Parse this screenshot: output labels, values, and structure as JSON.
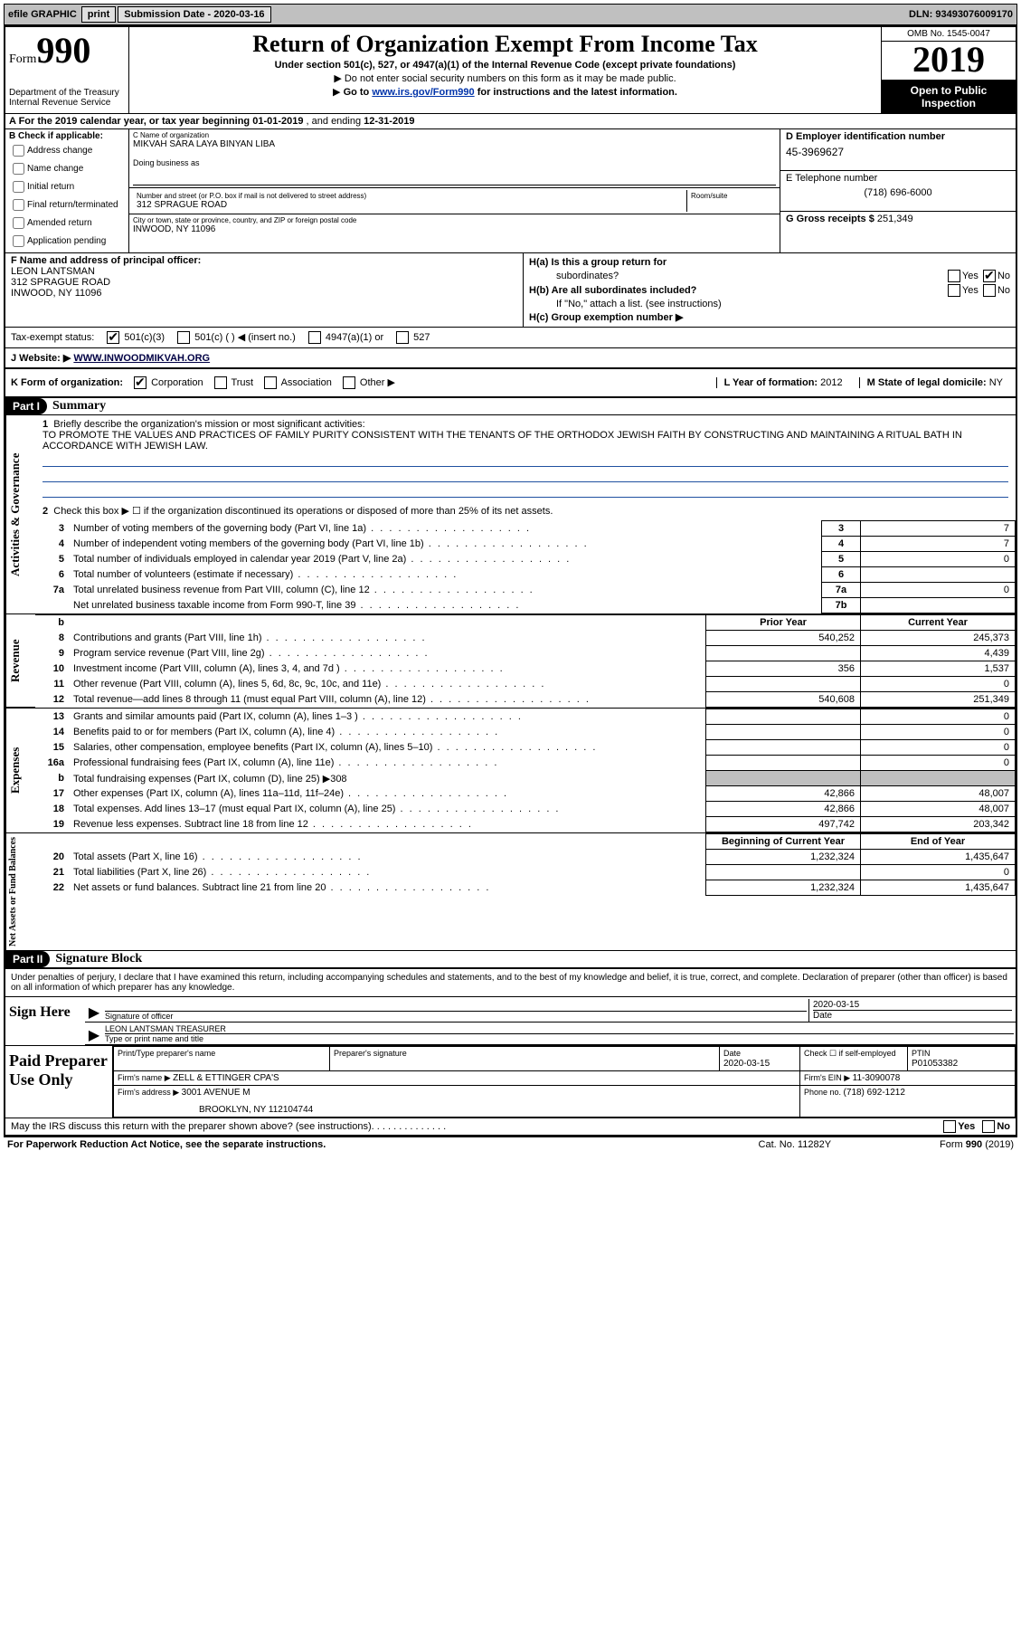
{
  "topbar": {
    "efile": "efile GRAPHIC",
    "print": "print",
    "sub_label": "Submission Date - ",
    "sub_date": "2020-03-16",
    "dln_label": "DLN: ",
    "dln": "93493076009170"
  },
  "header": {
    "form_word": "Form",
    "form_num": "990",
    "dept1": "Department of the Treasury",
    "dept2": "Internal Revenue Service",
    "title": "Return of Organization Exempt From Income Tax",
    "sub1": "Under section 501(c), 527, or 4947(a)(1) of the Internal Revenue Code (except private foundations)",
    "sub2": "Do not enter social security numbers on this form as it may be made public.",
    "sub3_pre": "Go to ",
    "sub3_link": "www.irs.gov/Form990",
    "sub3_post": " for instructions and the latest information.",
    "omb": "OMB No. 1545-0047",
    "year": "2019",
    "open1": "Open to Public",
    "open2": "Inspection"
  },
  "rowA": {
    "text_pre": "A For the 2019 calendar year, or tax year beginning ",
    "begin": "01-01-2019",
    "mid": " , and ending ",
    "end": "12-31-2019"
  },
  "colB": {
    "title": "B Check if applicable:",
    "opts": [
      "Address change",
      "Name change",
      "Initial return",
      "Final return/terminated",
      "Amended return",
      "Application pending"
    ]
  },
  "colC": {
    "name_label": "C Name of organization",
    "name": "MIKVAH SARA LAYA BINYAN LIBA",
    "dba_label": "Doing business as",
    "addr_label": "Number and street (or P.O. box if mail is not delivered to street address)",
    "addr": "312 SPRAGUE ROAD",
    "suite_label": "Room/suite",
    "city_label": "City or town, state or province, country, and ZIP or foreign postal code",
    "city": "INWOOD, NY  11096"
  },
  "colD": {
    "label": "D Employer identification number",
    "ein": "45-3969627"
  },
  "colE": {
    "label": "E Telephone number",
    "phone": "(718) 696-6000"
  },
  "colG": {
    "label": "G Gross receipts $ ",
    "val": "251,349"
  },
  "colF": {
    "label": "F  Name and address of principal officer:",
    "name": "LEON LANTSMAN",
    "addr1": "312 SPRAGUE ROAD",
    "addr2": "INWOOD, NY  11096"
  },
  "colH": {
    "ha1": "H(a)  Is this a group return for",
    "ha2": "subordinates?",
    "hb1": "H(b)  Are all subordinates included?",
    "hb2": "If \"No,\" attach a list. (see instructions)",
    "hc": "H(c)  Group exemption number ▶",
    "yes": "Yes",
    "no": "No"
  },
  "taxStatus": {
    "label": "Tax-exempt status:",
    "o1": "501(c)(3)",
    "o2": "501(c) (  ) ◀ (insert no.)",
    "o3": "4947(a)(1) or",
    "o4": "527"
  },
  "rowJ": {
    "label": "J   Website: ▶ ",
    "url": "WWW.INWOODMIKVAH.ORG"
  },
  "rowK": {
    "k": "K Form of organization:",
    "corp": "Corporation",
    "trust": "Trust",
    "assoc": "Association",
    "other": "Other ▶",
    "l_label": "L Year of formation: ",
    "l_val": "2012",
    "m_label": "M State of legal domicile: ",
    "m_val": "NY"
  },
  "part1": {
    "tag": "Part I",
    "title": "Summary",
    "q1": "Briefly describe the organization's mission or most significant activities:",
    "mission": "TO PROMOTE THE VALUES AND PRACTICES OF FAMILY PURITY CONSISTENT WITH THE TENANTS OF THE ORTHODOX JEWISH FAITH BY CONSTRUCTING AND MAINTAINING A RITUAL BATH IN ACCORDANCE WITH JEWISH LAW.",
    "q2": "Check this box ▶ ☐  if the organization discontinued its operations or disposed of more than 25% of its net assets.",
    "lines_ag": [
      {
        "n": "3",
        "t": "Number of voting members of the governing body (Part VI, line 1a)",
        "box": "3",
        "v": "7"
      },
      {
        "n": "4",
        "t": "Number of independent voting members of the governing body (Part VI, line 1b)",
        "box": "4",
        "v": "7"
      },
      {
        "n": "5",
        "t": "Total number of individuals employed in calendar year 2019 (Part V, line 2a)",
        "box": "5",
        "v": "0"
      },
      {
        "n": "6",
        "t": "Total number of volunteers (estimate if necessary)",
        "box": "6",
        "v": ""
      },
      {
        "n": "7a",
        "t": "Total unrelated business revenue from Part VIII, column (C), line 12",
        "box": "7a",
        "v": "0"
      },
      {
        "n": "",
        "t": "Net unrelated business taxable income from Form 990-T, line 39",
        "box": "7b",
        "v": ""
      }
    ],
    "prior_h": "Prior Year",
    "curr_h": "Current Year",
    "revenue": [
      {
        "n": "8",
        "t": "Contributions and grants (Part VIII, line 1h)",
        "p": "540,252",
        "c": "245,373"
      },
      {
        "n": "9",
        "t": "Program service revenue (Part VIII, line 2g)",
        "p": "",
        "c": "4,439"
      },
      {
        "n": "10",
        "t": "Investment income (Part VIII, column (A), lines 3, 4, and 7d )",
        "p": "356",
        "c": "1,537"
      },
      {
        "n": "11",
        "t": "Other revenue (Part VIII, column (A), lines 5, 6d, 8c, 9c, 10c, and 11e)",
        "p": "",
        "c": "0"
      },
      {
        "n": "12",
        "t": "Total revenue—add lines 8 through 11 (must equal Part VIII, column (A), line 12)",
        "p": "540,608",
        "c": "251,349"
      }
    ],
    "expenses": [
      {
        "n": "13",
        "t": "Grants and similar amounts paid (Part IX, column (A), lines 1–3 )",
        "p": "",
        "c": "0"
      },
      {
        "n": "14",
        "t": "Benefits paid to or for members (Part IX, column (A), line 4)",
        "p": "",
        "c": "0"
      },
      {
        "n": "15",
        "t": "Salaries, other compensation, employee benefits (Part IX, column (A), lines 5–10)",
        "p": "",
        "c": "0"
      },
      {
        "n": "16a",
        "t": "Professional fundraising fees (Part IX, column (A), line 11e)",
        "p": "",
        "c": "0"
      },
      {
        "n": "b",
        "t": "Total fundraising expenses (Part IX, column (D), line 25) ▶308",
        "p": "SHADE",
        "c": "SHADE"
      },
      {
        "n": "17",
        "t": "Other expenses (Part IX, column (A), lines 11a–11d, 11f–24e)",
        "p": "42,866",
        "c": "48,007"
      },
      {
        "n": "18",
        "t": "Total expenses. Add lines 13–17 (must equal Part IX, column (A), line 25)",
        "p": "42,866",
        "c": "48,007"
      },
      {
        "n": "19",
        "t": "Revenue less expenses. Subtract line 18 from line 12",
        "p": "497,742",
        "c": "203,342"
      }
    ],
    "netassets_h1": "Beginning of Current Year",
    "netassets_h2": "End of Year",
    "netassets": [
      {
        "n": "20",
        "t": "Total assets (Part X, line 16)",
        "p": "1,232,324",
        "c": "1,435,647"
      },
      {
        "n": "21",
        "t": "Total liabilities (Part X, line 26)",
        "p": "",
        "c": "0"
      },
      {
        "n": "22",
        "t": "Net assets or fund balances. Subtract line 21 from line 20",
        "p": "1,232,324",
        "c": "1,435,647"
      }
    ]
  },
  "part2": {
    "tag": "Part II",
    "title": "Signature Block",
    "decl": "Under penalties of perjury, I declare that I have examined this return, including accompanying schedules and statements, and to the best of my knowledge and belief, it is true, correct, and complete. Declaration of preparer (other than officer) is based on all information of which preparer has any knowledge.",
    "sign_here": "Sign Here",
    "sig_officer_label": "Signature of officer",
    "date_label": "Date",
    "sig_date": "2020-03-15",
    "officer_name": "LEON LANTSMAN  TREASURER",
    "officer_name_label": "Type or print name and title",
    "paid_prep": "Paid Preparer Use Only",
    "prep_name_label": "Print/Type preparer's name",
    "prep_sig_label": "Preparer's signature",
    "prep_date_label": "Date",
    "prep_date": "2020-03-15",
    "prep_check": "Check ☐ if self-employed",
    "ptin_label": "PTIN",
    "ptin": "P01053382",
    "firm_name_label": "Firm's name    ▶ ",
    "firm_name": "ZELL & ETTINGER CPA'S",
    "firm_ein_label": "Firm's EIN ▶ ",
    "firm_ein": "11-3090078",
    "firm_addr_label": "Firm's address ▶ ",
    "firm_addr1": "3001 AVENUE M",
    "firm_addr2": "BROOKLYN, NY  112104744",
    "firm_phone_label": "Phone no. ",
    "firm_phone": "(718) 692-1212",
    "discuss": "May the IRS discuss this return with the preparer shown above? (see instructions)"
  },
  "footer": {
    "left": "For Paperwork Reduction Act Notice, see the separate instructions.",
    "mid": "Cat. No. 11282Y",
    "right": "Form 990 (2019)"
  },
  "vert_labels": {
    "ag": "Activities & Governance",
    "rev": "Revenue",
    "exp": "Expenses",
    "na": "Net Assets or Fund Balances"
  }
}
